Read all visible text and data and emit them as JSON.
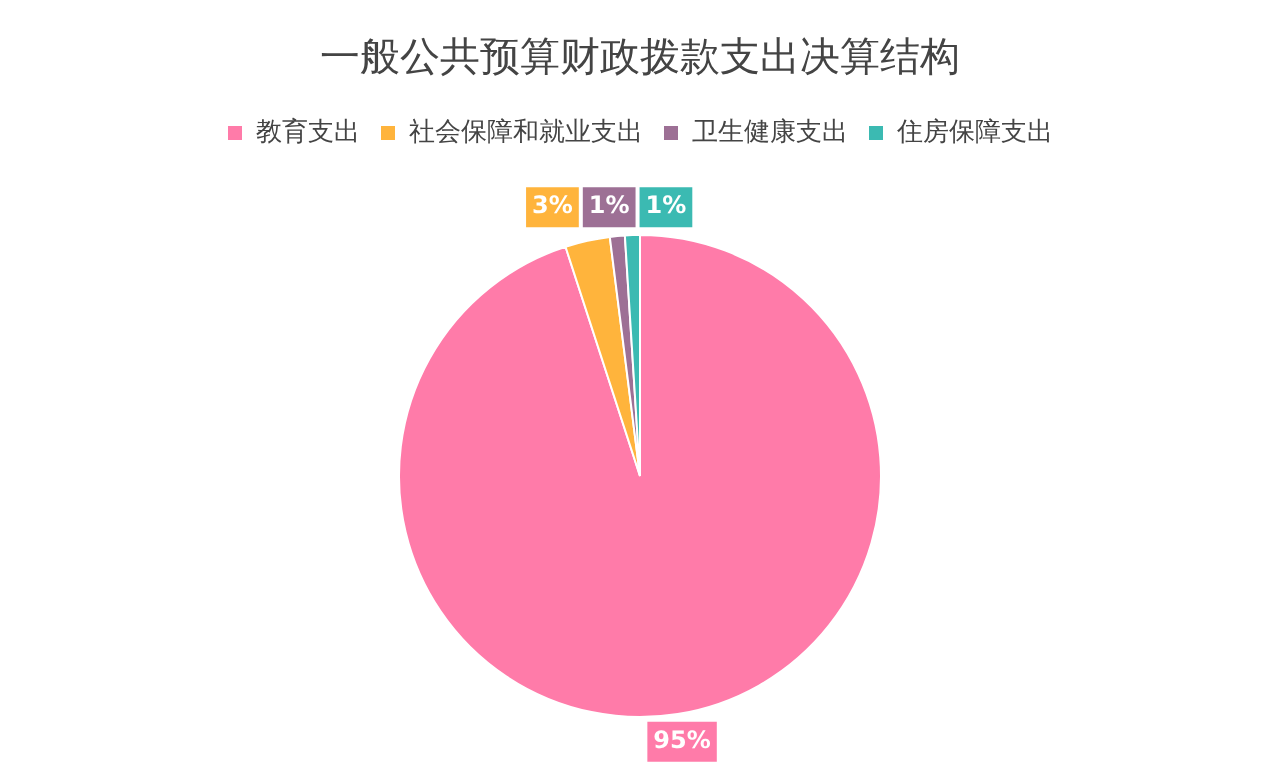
{
  "chart_data": {
    "type": "pie",
    "title": "一般公共预算财政拨款支出决算结构",
    "categories": [
      "教育支出",
      "社会保障和就业支出",
      "卫生健康支出",
      "住房保障支出"
    ],
    "values": [
      95,
      3,
      1,
      1
    ],
    "colors": [
      "#ff7ba9",
      "#ffb43c",
      "#9d7095",
      "#3bbab2"
    ],
    "value_labels": [
      "95%",
      "3%",
      "1%",
      "1%"
    ],
    "legend": "top"
  }
}
